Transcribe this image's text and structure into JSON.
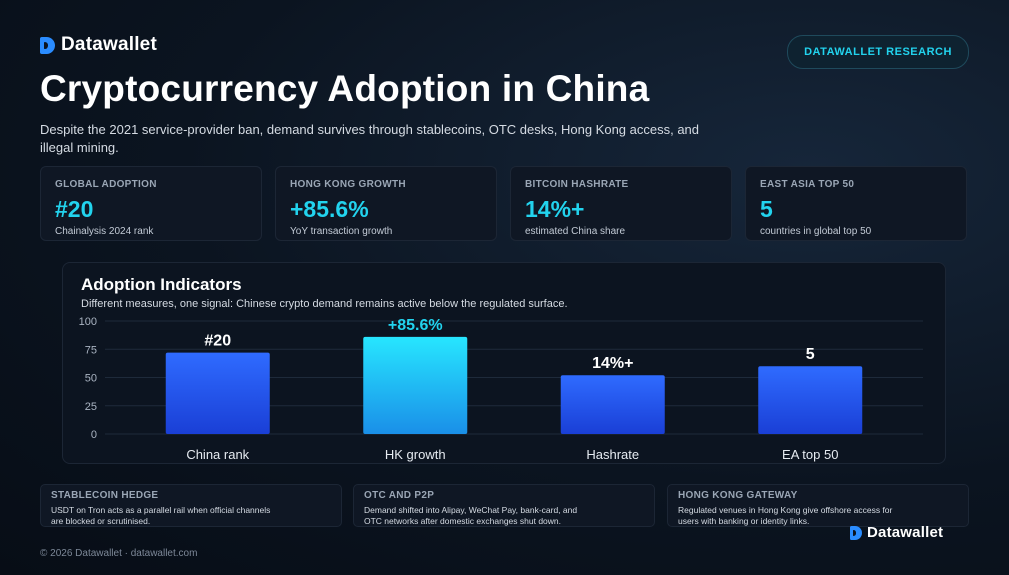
{
  "brand": {
    "name": "Datawallet",
    "accent": "#2a8cff"
  },
  "header": {
    "badge": "DATAWALLET RESEARCH",
    "title": "Cryptocurrency Adoption in China",
    "subtitle": "Despite the 2021 service-provider ban, demand survives through stablecoins, OTC desks, Hong Kong access, and illegal mining."
  },
  "stats": [
    {
      "label": "GLOBAL ADOPTION",
      "value": "#20",
      "note": "Chainalysis 2024 rank"
    },
    {
      "label": "HONG KONG GROWTH",
      "value": "+85.6%",
      "note": "YoY transaction growth"
    },
    {
      "label": "BITCOIN HASHRATE",
      "value": "14%+",
      "note": "estimated China share"
    },
    {
      "label": "EAST ASIA TOP 50",
      "value": "5",
      "note": "countries in global top 50"
    }
  ],
  "chart_panel": {
    "title": "Adoption Indicators",
    "subtitle": "Different measures, one signal: Chinese crypto demand remains active below the regulated surface."
  },
  "chart_data": {
    "type": "bar",
    "categories": [
      "China rank",
      "HK growth",
      "Hashrate",
      "EA top 50"
    ],
    "values": [
      72,
      86,
      52,
      60
    ],
    "data_labels": [
      "#20",
      "+85.6%",
      "14%+",
      "5"
    ],
    "ylim": [
      0,
      100
    ],
    "yticks": [
      0,
      25,
      50,
      75,
      100
    ],
    "grid": true,
    "highlight_index": 1,
    "colors": {
      "bar_top": "#2f6bff",
      "bar_bottom": "#1a3fd6",
      "highlight_top": "#27e6ff",
      "highlight_bottom": "#1a8fe8",
      "highlight_label": "#22d3ee"
    }
  },
  "info_cards": [
    {
      "title": "STABLECOIN HEDGE",
      "body": "USDT on Tron acts as a parallel rail when official channels are blocked or scrutinised."
    },
    {
      "title": "OTC AND P2P",
      "body": "Demand shifted into Alipay, WeChat Pay, bank-card, and OTC networks after domestic exchanges shut down."
    },
    {
      "title": "HONG KONG GATEWAY",
      "body": "Regulated venues in Hong Kong give offshore access for users with banking or identity links."
    }
  ],
  "footer": {
    "copyright": "© 2026 Datawallet · datawallet.com",
    "brand": "Datawallet"
  }
}
